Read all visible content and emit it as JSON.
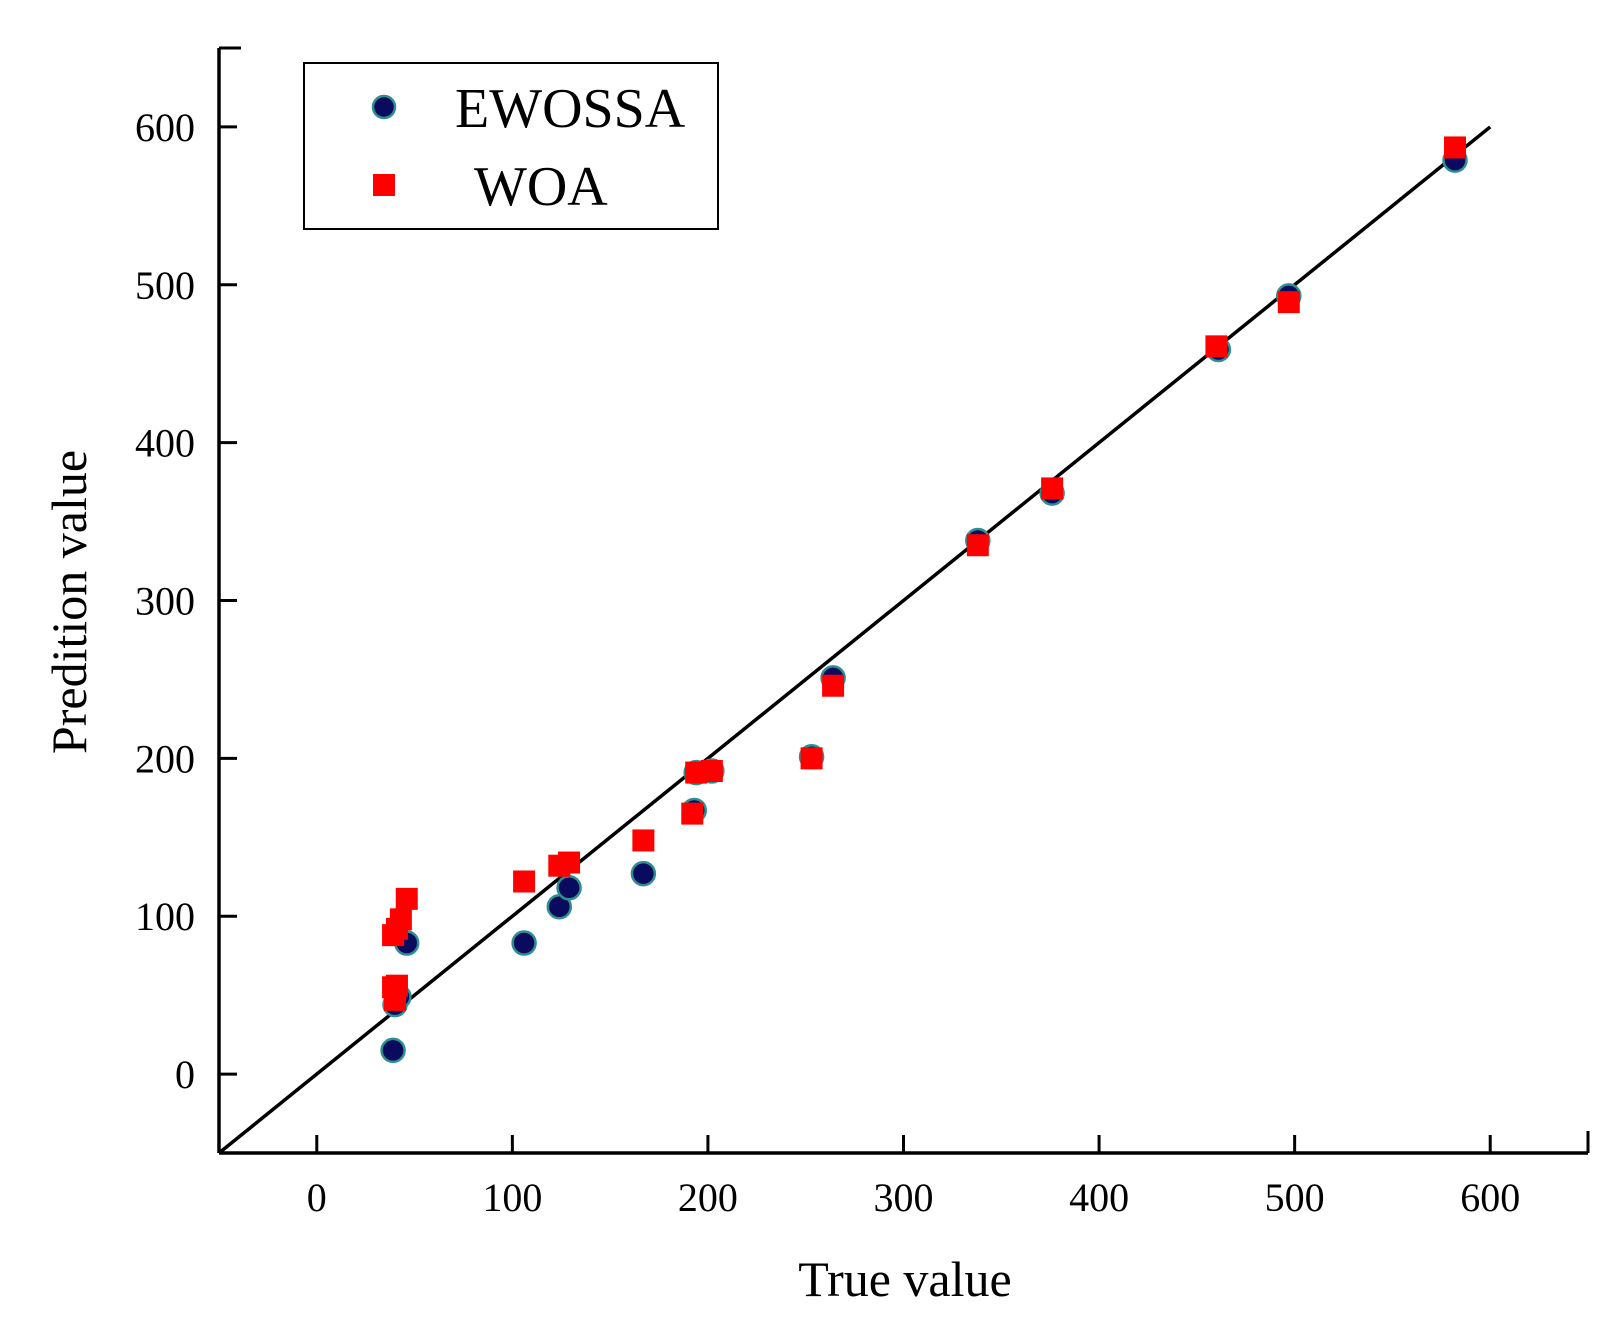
{
  "chart_data": {
    "type": "scatter",
    "title": "",
    "xlabel": "True value",
    "ylabel": "Predition value",
    "xlim": [
      -50,
      650
    ],
    "ylim": [
      -50,
      650
    ],
    "xticks": [
      0,
      100,
      200,
      300,
      400,
      500,
      600
    ],
    "yticks": [
      0,
      100,
      200,
      300,
      400,
      500,
      600
    ],
    "grid": false,
    "legend_position": "top-left",
    "reference_line": {
      "x": [
        -50,
        600
      ],
      "y": [
        -50,
        600
      ],
      "color": "#000000"
    },
    "series": [
      {
        "name": "EWOSSA",
        "marker": "circle",
        "color": "#0a0a5e",
        "edge_color": "#2f8f8f",
        "points": [
          [
            39,
            15
          ],
          [
            40,
            44
          ],
          [
            42,
            49
          ],
          [
            46,
            83
          ],
          [
            106,
            83
          ],
          [
            124,
            106
          ],
          [
            129,
            118
          ],
          [
            167,
            127
          ],
          [
            193,
            167
          ],
          [
            194,
            191
          ],
          [
            202,
            192
          ],
          [
            253,
            201
          ],
          [
            264,
            251
          ],
          [
            338,
            338
          ],
          [
            376,
            368
          ],
          [
            461,
            459
          ],
          [
            497,
            493
          ],
          [
            582,
            579
          ]
        ]
      },
      {
        "name": "WOA",
        "marker": "square",
        "color": "#ff0000",
        "points": [
          [
            39,
            88
          ],
          [
            41,
            92
          ],
          [
            43,
            98
          ],
          [
            46,
            111
          ],
          [
            39,
            55
          ],
          [
            41,
            56
          ],
          [
            40,
            47
          ],
          [
            106,
            122
          ],
          [
            124,
            132
          ],
          [
            129,
            134
          ],
          [
            167,
            148
          ],
          [
            192,
            165
          ],
          [
            194,
            191
          ],
          [
            202,
            192
          ],
          [
            253,
            200
          ],
          [
            264,
            246
          ],
          [
            338,
            335
          ],
          [
            376,
            371
          ],
          [
            460,
            461
          ],
          [
            497,
            489
          ],
          [
            582,
            587
          ]
        ]
      }
    ]
  }
}
